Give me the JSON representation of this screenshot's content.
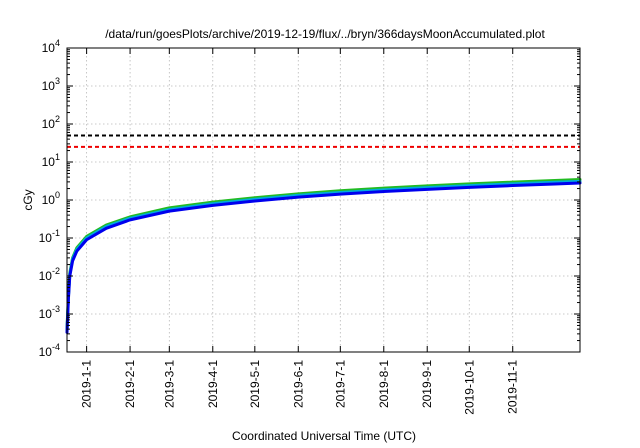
{
  "chart_data": {
    "type": "line",
    "title": "/data/run/goesPlots/archive/2019-12-19/flux/../bryn/366daysMoonAccumulated.plot",
    "xlabel": "Coordinated Universal Time (UTC)",
    "ylabel": "cGy",
    "y_scale": "log",
    "ylim": [
      0.0001,
      10000
    ],
    "xlim": [
      "2018-12-18",
      "2019-12-19"
    ],
    "grid": true,
    "y_ticks": [
      {
        "base": "10",
        "exp": "-4",
        "value": 0.0001
      },
      {
        "base": "10",
        "exp": "-3",
        "value": 0.001
      },
      {
        "base": "10",
        "exp": "-2",
        "value": 0.01
      },
      {
        "base": "10",
        "exp": "-1",
        "value": 0.1
      },
      {
        "base": "10",
        "exp": "0",
        "value": 1
      },
      {
        "base": "10",
        "exp": "1",
        "value": 10
      },
      {
        "base": "10",
        "exp": "2",
        "value": 100
      },
      {
        "base": "10",
        "exp": "3",
        "value": 1000
      },
      {
        "base": "10",
        "exp": "4",
        "value": 10000
      }
    ],
    "x_ticks": [
      "2019-1-1",
      "2019-2-1",
      "2019-3-1",
      "2019-4-1",
      "2019-5-1",
      "2019-6-1",
      "2019-7-1",
      "2019-8-1",
      "2019-9-1",
      "2019-10-1",
      "2019-11-1"
    ],
    "series": [
      {
        "color": "#22bb22",
        "x": [
          "2018-12-18",
          "2018-12-19",
          "2018-12-20",
          "2018-12-22",
          "2018-12-25",
          "2019-01-01",
          "2019-01-15",
          "2019-02-01",
          "2019-03-01",
          "2019-04-01",
          "2019-05-01",
          "2019-06-01",
          "2019-07-01",
          "2019-08-01",
          "2019-09-01",
          "2019-10-01",
          "2019-11-01",
          "2019-12-01",
          "2019-12-19"
        ],
        "y": [
          0.0004,
          0.003,
          0.012,
          0.03,
          0.055,
          0.11,
          0.22,
          0.36,
          0.62,
          0.88,
          1.15,
          1.45,
          1.75,
          2.05,
          2.35,
          2.65,
          2.95,
          3.25,
          3.45
        ]
      },
      {
        "color": "#00aadd",
        "x": [
          "2018-12-18",
          "2018-12-19",
          "2018-12-20",
          "2018-12-22",
          "2018-12-25",
          "2019-01-01",
          "2019-01-15",
          "2019-02-01",
          "2019-03-01",
          "2019-04-01",
          "2019-05-01",
          "2019-06-01",
          "2019-07-01",
          "2019-08-01",
          "2019-09-01",
          "2019-10-01",
          "2019-11-01",
          "2019-12-01",
          "2019-12-19"
        ],
        "y": [
          0.00037,
          0.0028,
          0.011,
          0.028,
          0.05,
          0.1,
          0.2,
          0.33,
          0.56,
          0.8,
          1.04,
          1.32,
          1.58,
          1.85,
          2.12,
          2.39,
          2.66,
          2.93,
          3.1
        ]
      },
      {
        "color": "#0000ee",
        "x": [
          "2018-12-18",
          "2018-12-19",
          "2018-12-20",
          "2018-12-22",
          "2018-12-25",
          "2019-01-01",
          "2019-01-15",
          "2019-02-01",
          "2019-03-01",
          "2019-04-01",
          "2019-05-01",
          "2019-06-01",
          "2019-07-01",
          "2019-08-01",
          "2019-09-01",
          "2019-10-01",
          "2019-11-01",
          "2019-12-01",
          "2019-12-19"
        ],
        "y": [
          0.00033,
          0.0025,
          0.01,
          0.025,
          0.045,
          0.09,
          0.18,
          0.3,
          0.51,
          0.72,
          0.94,
          1.19,
          1.43,
          1.67,
          1.91,
          2.15,
          2.4,
          2.64,
          2.8
        ]
      }
    ],
    "threshold_lines": [
      {
        "value": 50,
        "color": "#000000",
        "style": "dashed"
      },
      {
        "value": 25,
        "color": "#ee0000",
        "style": "dashed"
      }
    ]
  }
}
